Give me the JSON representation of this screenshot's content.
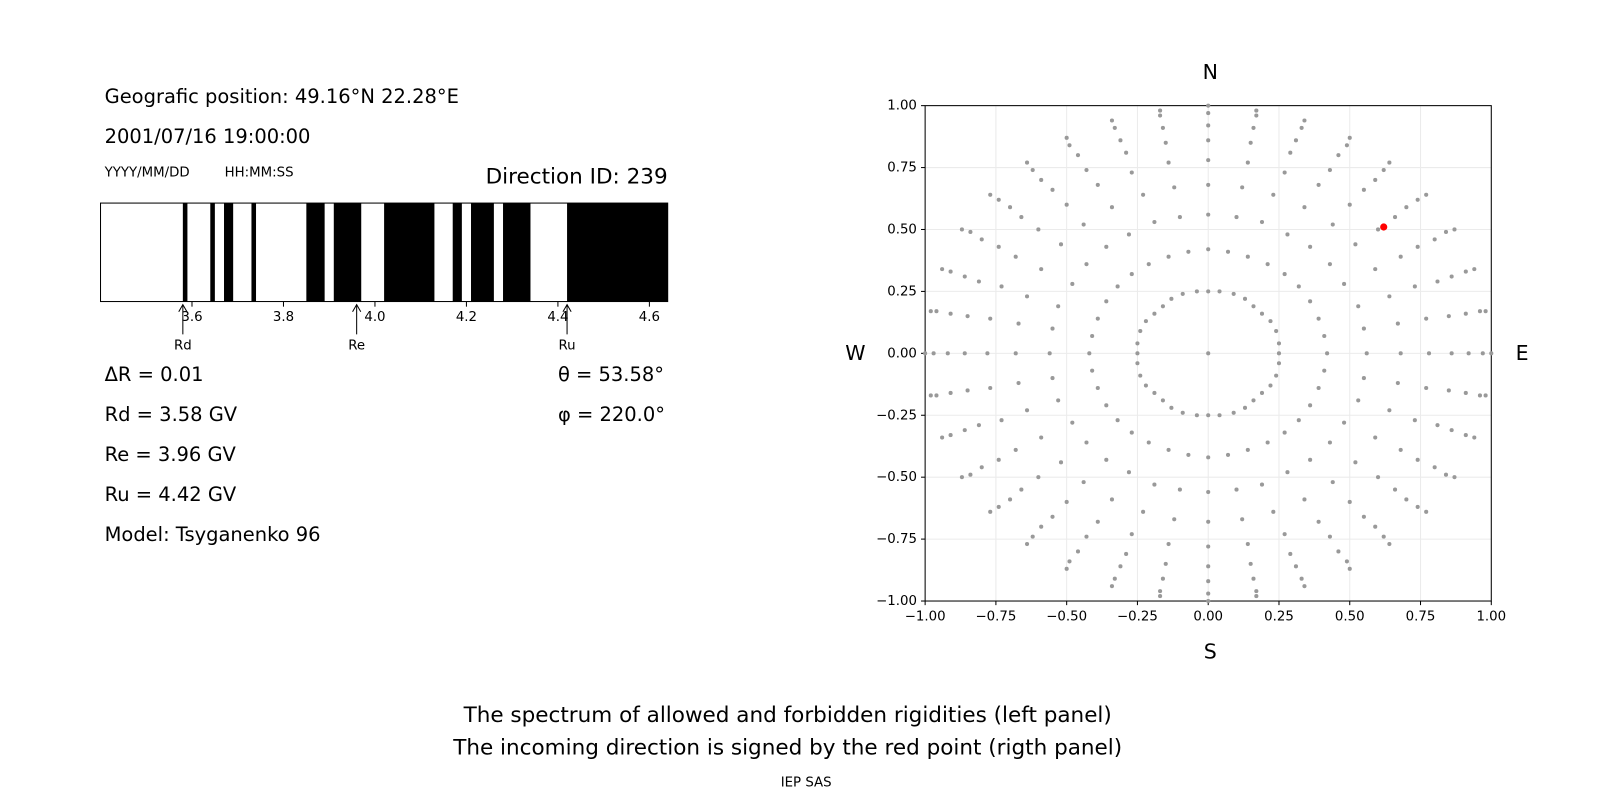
{
  "header": {
    "position": "Geografic position: 49.16°N 22.28°E",
    "datetime": "2001/07/16 19:00:00",
    "date_format": "YYYY/MM/DD",
    "time_format": "HH:MM:SS",
    "direction_id": "Direction ID: 239"
  },
  "parameters": {
    "delta_r": "ΔR = 0.01",
    "rd": "Rd = 3.58 GV",
    "re": "Re = 3.96 GV",
    "ru": "Ru = 4.42 GV",
    "model": "Model: Tsyganenko 96",
    "theta": "θ = 53.58°",
    "phi": "φ = 220.0°"
  },
  "chart_data": [
    {
      "type": "spectrum",
      "forbidden": [
        [
          3.58,
          3.59
        ],
        [
          3.64,
          3.65
        ],
        [
          3.67,
          3.69
        ],
        [
          3.73,
          3.74
        ],
        [
          3.85,
          3.89
        ],
        [
          3.91,
          3.97
        ],
        [
          4.02,
          4.13
        ],
        [
          4.17,
          4.19
        ],
        [
          4.21,
          4.26
        ],
        [
          4.28,
          4.34
        ],
        [
          4.42,
          4.64
        ]
      ],
      "color": "#000000",
      "xlim": [
        3.4,
        4.64
      ],
      "xticks": [
        3.6,
        3.8,
        {
          "value": 4,
          "label": "4.0"
        },
        4.2,
        4.4,
        4.6
      ],
      "markers": [
        {
          "label": "Rd",
          "value": 3.58
        },
        {
          "label": "Re",
          "value": 3.96
        },
        {
          "label": "Ru",
          "value": 4.42
        }
      ]
    },
    {
      "type": "scatter",
      "xlim": [
        -1,
        1
      ],
      "ylim": [
        -1,
        1
      ],
      "grid": true,
      "xticks": [
        {
          "value": -1,
          "label": "−1.00"
        },
        {
          "value": -0.75,
          "label": "−0.75"
        },
        {
          "value": -0.5,
          "label": "−0.50"
        },
        {
          "value": -0.25,
          "label": "−0.25"
        },
        {
          "value": 0,
          "label": "0.00"
        },
        {
          "value": 0.25,
          "label": "0.25"
        },
        {
          "value": 0.5,
          "label": "0.50"
        },
        {
          "value": 0.75,
          "label": "0.75"
        },
        {
          "value": 1,
          "label": "1.00"
        }
      ],
      "yticks": [
        {
          "value": -1,
          "label": "−1.00"
        },
        {
          "value": -0.75,
          "label": "−0.75"
        },
        {
          "value": -0.5,
          "label": "−0.50"
        },
        {
          "value": -0.25,
          "label": "−0.25"
        },
        {
          "value": 0,
          "label": "0.00"
        },
        {
          "value": 0.25,
          "label": "0.25"
        },
        {
          "value": 0.5,
          "label": "0.50"
        },
        {
          "value": 0.75,
          "label": "0.75"
        },
        {
          "value": 1,
          "label": "1.00"
        }
      ],
      "labels": {
        "top": "N",
        "bottom": "S",
        "left": "W",
        "right": "E"
      },
      "series": [
        {
          "color": "#999999",
          "x": [
            0
          ],
          "y": [
            0
          ]
        },
        {
          "color": "#999999",
          "x": [
            0,
            0.04,
            0.09,
            0.13,
            0.16,
            0.19,
            0.22,
            0.24,
            0.25,
            0.25,
            0.25,
            0.24,
            0.22,
            0.19,
            0.16,
            0.13,
            0.09,
            0.04,
            0,
            -0.04,
            -0.09,
            -0.13,
            -0.16,
            -0.19,
            -0.22,
            -0.24,
            -0.25,
            -0.25,
            -0.25,
            -0.24,
            -0.22,
            -0.19,
            -0.16,
            -0.13,
            -0.09,
            -0.04
          ],
          "y": [
            0.25,
            0.25,
            0.24,
            0.22,
            0.19,
            0.16,
            0.13,
            0.09,
            0.04,
            0,
            -0.04,
            -0.09,
            -0.13,
            -0.16,
            -0.19,
            -0.22,
            -0.24,
            -0.25,
            -0.25,
            -0.25,
            -0.24,
            -0.22,
            -0.19,
            -0.16,
            -0.13,
            -0.09,
            -0.04,
            0,
            0.04,
            0.09,
            0.13,
            0.16,
            0.19,
            0.22,
            0.24,
            0.25
          ]
        },
        {
          "color": "#999999",
          "x": [
            0,
            0.07,
            0.14,
            0.21,
            0.27,
            0.32,
            0.36,
            0.39,
            0.41,
            0.42,
            0.41,
            0.39,
            0.36,
            0.32,
            0.27,
            0.21,
            0.14,
            0.07,
            0,
            -0.07,
            -0.14,
            -0.21,
            -0.27,
            -0.32,
            -0.36,
            -0.39,
            -0.41,
            -0.42,
            -0.41,
            -0.39,
            -0.36,
            -0.32,
            -0.27,
            -0.21,
            -0.14,
            -0.07
          ],
          "y": [
            0.42,
            0.41,
            0.39,
            0.36,
            0.32,
            0.27,
            0.21,
            0.14,
            0.07,
            0,
            -0.07,
            -0.14,
            -0.21,
            -0.27,
            -0.32,
            -0.36,
            -0.39,
            -0.41,
            -0.42,
            -0.41,
            -0.39,
            -0.36,
            -0.32,
            -0.27,
            -0.21,
            -0.14,
            -0.07,
            0,
            0.07,
            0.14,
            0.21,
            0.27,
            0.32,
            0.36,
            0.39,
            0.41
          ]
        },
        {
          "color": "#999999",
          "x": [
            0,
            0.1,
            0.19,
            0.28,
            0.36,
            0.43,
            0.48,
            0.53,
            0.55,
            0.56,
            0.55,
            0.53,
            0.48,
            0.43,
            0.36,
            0.28,
            0.19,
            0.1,
            0,
            -0.1,
            -0.19,
            -0.28,
            -0.36,
            -0.43,
            -0.48,
            -0.53,
            -0.55,
            -0.56,
            -0.55,
            -0.53,
            -0.48,
            -0.43,
            -0.36,
            -0.28,
            -0.19,
            -0.1
          ],
          "y": [
            0.56,
            0.55,
            0.53,
            0.48,
            0.43,
            0.36,
            0.28,
            0.19,
            0.1,
            0,
            -0.1,
            -0.19,
            -0.28,
            -0.36,
            -0.43,
            -0.48,
            -0.53,
            -0.55,
            -0.56,
            -0.55,
            -0.53,
            -0.48,
            -0.43,
            -0.36,
            -0.28,
            -0.19,
            -0.1,
            0,
            0.1,
            0.19,
            0.28,
            0.36,
            0.43,
            0.48,
            0.53,
            0.55
          ]
        },
        {
          "color": "#999999",
          "x": [
            0,
            0.12,
            0.23,
            0.34,
            0.44,
            0.52,
            0.59,
            0.64,
            0.67,
            0.68,
            0.67,
            0.64,
            0.59,
            0.52,
            0.44,
            0.34,
            0.23,
            0.12,
            0,
            -0.12,
            -0.23,
            -0.34,
            -0.44,
            -0.52,
            -0.59,
            -0.64,
            -0.67,
            -0.68,
            -0.67,
            -0.64,
            -0.59,
            -0.52,
            -0.44,
            -0.34,
            -0.23,
            -0.12
          ],
          "y": [
            0.68,
            0.67,
            0.64,
            0.59,
            0.52,
            0.44,
            0.34,
            0.23,
            0.12,
            0,
            -0.12,
            -0.23,
            -0.34,
            -0.44,
            -0.52,
            -0.59,
            -0.64,
            -0.67,
            -0.68,
            -0.67,
            -0.64,
            -0.59,
            -0.52,
            -0.44,
            -0.34,
            -0.23,
            -0.12,
            0,
            0.12,
            0.23,
            0.34,
            0.44,
            0.52,
            0.59,
            0.64,
            0.67
          ]
        },
        {
          "color": "#999999",
          "x": [
            0,
            0.14,
            0.27,
            0.39,
            0.5,
            0.6,
            0.68,
            0.73,
            0.77,
            0.78,
            0.77,
            0.73,
            0.68,
            0.6,
            0.5,
            0.39,
            0.27,
            0.14,
            0,
            -0.14,
            -0.27,
            -0.39,
            -0.5,
            -0.6,
            -0.68,
            -0.73,
            -0.77,
            -0.78,
            -0.77,
            -0.73,
            -0.68,
            -0.6,
            -0.5,
            -0.39,
            -0.27,
            -0.14
          ],
          "y": [
            0.78,
            0.77,
            0.73,
            0.68,
            0.6,
            0.5,
            0.39,
            0.27,
            0.14,
            0,
            -0.14,
            -0.27,
            -0.39,
            -0.5,
            -0.6,
            -0.68,
            -0.73,
            -0.77,
            -0.78,
            -0.77,
            -0.73,
            -0.68,
            -0.6,
            -0.5,
            -0.39,
            -0.27,
            -0.14,
            0,
            0.14,
            0.27,
            0.39,
            0.5,
            0.6,
            0.68,
            0.73,
            0.77
          ]
        },
        {
          "color": "#999999",
          "x": [
            0,
            0.15,
            0.29,
            0.43,
            0.55,
            0.66,
            0.74,
            0.81,
            0.85,
            0.86,
            0.85,
            0.81,
            0.74,
            0.66,
            0.55,
            0.43,
            0.29,
            0.15,
            0,
            -0.15,
            -0.29,
            -0.43,
            -0.55,
            -0.66,
            -0.74,
            -0.81,
            -0.85,
            -0.86,
            -0.85,
            -0.81,
            -0.74,
            -0.66,
            -0.55,
            -0.43,
            -0.29,
            -0.15
          ],
          "y": [
            0.86,
            0.85,
            0.81,
            0.74,
            0.66,
            0.55,
            0.43,
            0.29,
            0.15,
            0,
            -0.15,
            -0.29,
            -0.43,
            -0.55,
            -0.66,
            -0.74,
            -0.81,
            -0.85,
            -0.86,
            -0.85,
            -0.81,
            -0.74,
            -0.66,
            -0.55,
            -0.43,
            -0.29,
            -0.15,
            0,
            0.15,
            0.29,
            0.43,
            0.55,
            0.66,
            0.74,
            0.81,
            0.85
          ]
        },
        {
          "color": "#999999",
          "x": [
            0,
            0.16,
            0.31,
            0.46,
            0.59,
            0.7,
            0.8,
            0.86,
            0.91,
            0.92,
            0.91,
            0.86,
            0.8,
            0.7,
            0.59,
            0.46,
            0.31,
            0.16,
            0,
            -0.16,
            -0.31,
            -0.46,
            -0.59,
            -0.7,
            -0.8,
            -0.86,
            -0.91,
            -0.92,
            -0.91,
            -0.86,
            -0.8,
            -0.7,
            -0.59,
            -0.46,
            -0.31,
            -0.16
          ],
          "y": [
            0.92,
            0.91,
            0.86,
            0.8,
            0.7,
            0.59,
            0.46,
            0.31,
            0.16,
            0,
            -0.16,
            -0.31,
            -0.46,
            -0.59,
            -0.7,
            -0.8,
            -0.86,
            -0.91,
            -0.92,
            -0.91,
            -0.86,
            -0.8,
            -0.7,
            -0.59,
            -0.46,
            -0.31,
            -0.16,
            0,
            0.16,
            0.31,
            0.46,
            0.59,
            0.7,
            0.8,
            0.86,
            0.91
          ]
        },
        {
          "color": "#999999",
          "x": [
            0,
            0.17,
            0.33,
            0.49,
            0.62,
            0.74,
            0.84,
            0.91,
            0.96,
            0.97,
            0.96,
            0.91,
            0.84,
            0.74,
            0.62,
            0.49,
            0.33,
            0.17,
            0,
            -0.17,
            -0.33,
            -0.49,
            -0.62,
            -0.74,
            -0.84,
            -0.91,
            -0.96,
            -0.97,
            -0.96,
            -0.91,
            -0.84,
            -0.74,
            -0.62,
            -0.49,
            -0.33,
            -0.17
          ],
          "y": [
            0.97,
            0.96,
            0.91,
            0.84,
            0.74,
            0.62,
            0.49,
            0.33,
            0.17,
            0,
            -0.17,
            -0.33,
            -0.49,
            -0.62,
            -0.74,
            -0.84,
            -0.91,
            -0.96,
            -0.97,
            -0.96,
            -0.91,
            -0.84,
            -0.74,
            -0.62,
            -0.49,
            -0.33,
            -0.17,
            0,
            0.17,
            0.33,
            0.49,
            0.62,
            0.74,
            0.84,
            0.91,
            0.96
          ]
        },
        {
          "color": "#999999",
          "x": [
            0,
            0.17,
            0.34,
            0.5,
            0.64,
            0.77,
            0.87,
            0.94,
            0.98,
            1,
            0.98,
            0.94,
            0.87,
            0.77,
            0.64,
            0.5,
            0.34,
            0.17,
            0,
            -0.17,
            -0.34,
            -0.5,
            -0.64,
            -0.77,
            -0.87,
            -0.94,
            -0.98,
            -1,
            -0.98,
            -0.94,
            -0.87,
            -0.77,
            -0.64,
            -0.5,
            -0.34,
            -0.17
          ],
          "y": [
            1,
            0.98,
            0.94,
            0.87,
            0.77,
            0.64,
            0.5,
            0.34,
            0.17,
            0,
            -0.17,
            -0.34,
            -0.5,
            -0.64,
            -0.77,
            -0.87,
            -0.94,
            -0.98,
            -1,
            -0.98,
            -0.94,
            -0.87,
            -0.77,
            -0.64,
            -0.5,
            -0.34,
            -0.17,
            0,
            0.17,
            0.34,
            0.5,
            0.64,
            0.77,
            0.87,
            0.94,
            0.98
          ]
        },
        {
          "color": "#ff0000",
          "x": [
            0.62
          ],
          "y": [
            0.51
          ]
        }
      ]
    }
  ],
  "footer": {
    "lines": [
      "The spectrum of allowed and forbidden rigidities (left panel)",
      "The incoming direction is signed by the red point (rigth panel)"
    ],
    "credit": "IEP SAS"
  }
}
